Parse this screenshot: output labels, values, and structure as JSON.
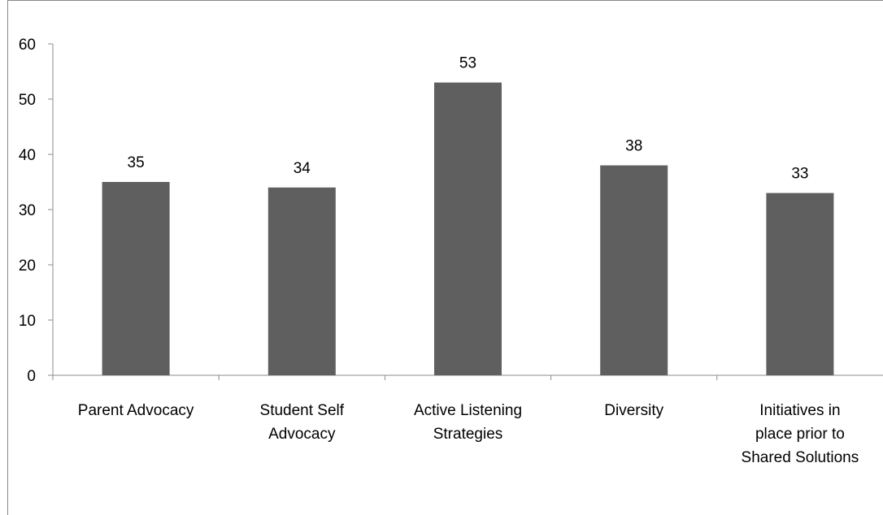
{
  "chart_data": {
    "type": "bar",
    "categories": [
      [
        "Parent Advocacy"
      ],
      [
        "Student Self",
        "Advocacy"
      ],
      [
        "Active Listening",
        "Strategies"
      ],
      [
        "Diversity"
      ],
      [
        "Initiatives in",
        "place prior to",
        "Shared Solutions"
      ]
    ],
    "values": [
      35,
      34,
      53,
      38,
      33
    ],
    "data_labels": [
      "35",
      "34",
      "53",
      "38",
      "33"
    ],
    "y_ticks": [
      "0",
      "10",
      "20",
      "30",
      "40",
      "50",
      "60"
    ],
    "ylim": [
      0,
      60
    ],
    "title": "",
    "xlabel": "",
    "ylabel": "",
    "grid": false,
    "legend": "none",
    "colors": {
      "bar": "#5f5f5f",
      "axis": "#8c8c8c",
      "frame": "#888888",
      "text": "#000000"
    }
  }
}
